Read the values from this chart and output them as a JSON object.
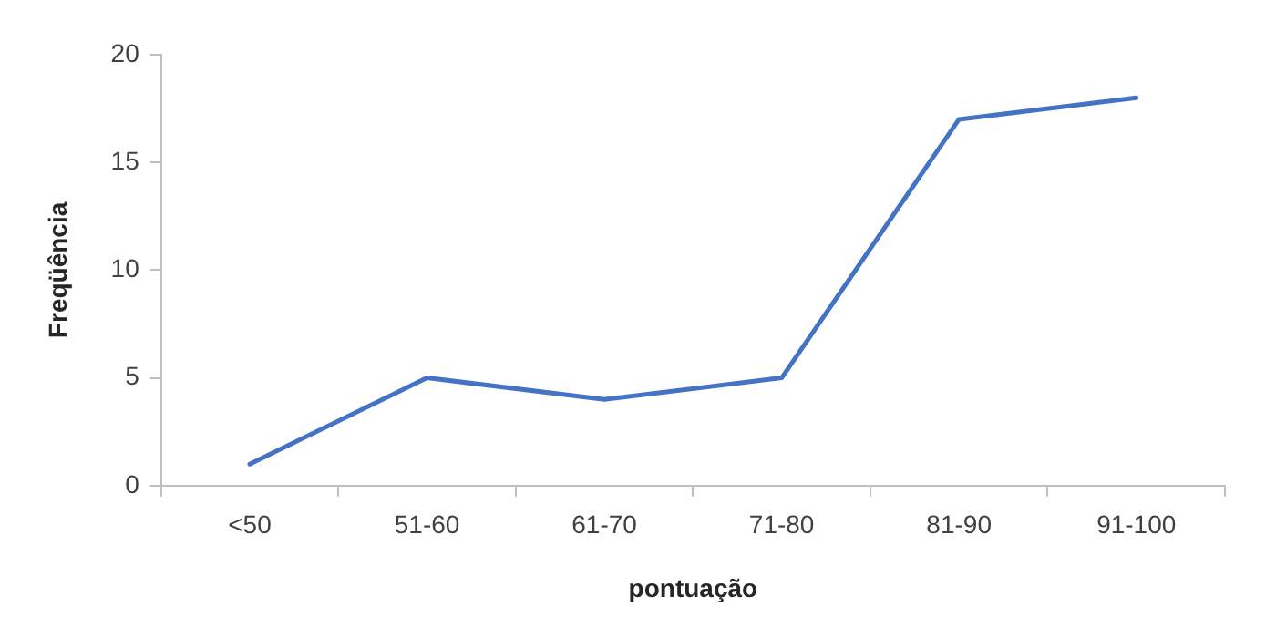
{
  "chart_data": {
    "type": "line",
    "xlabel": "pontuação",
    "ylabel": "Freqüência",
    "categories": [
      "<50",
      "51-60",
      "61-70",
      "71-80",
      "81-90",
      "91-100"
    ],
    "series": [
      {
        "color": "#4472c4",
        "values": [
          1,
          5,
          4,
          5,
          17,
          18
        ]
      }
    ],
    "ylim": [
      0,
      20
    ],
    "yticks": [
      0,
      5,
      10,
      15,
      20
    ],
    "grid": false,
    "legend": false,
    "marker": "none",
    "line_style": "solid"
  }
}
